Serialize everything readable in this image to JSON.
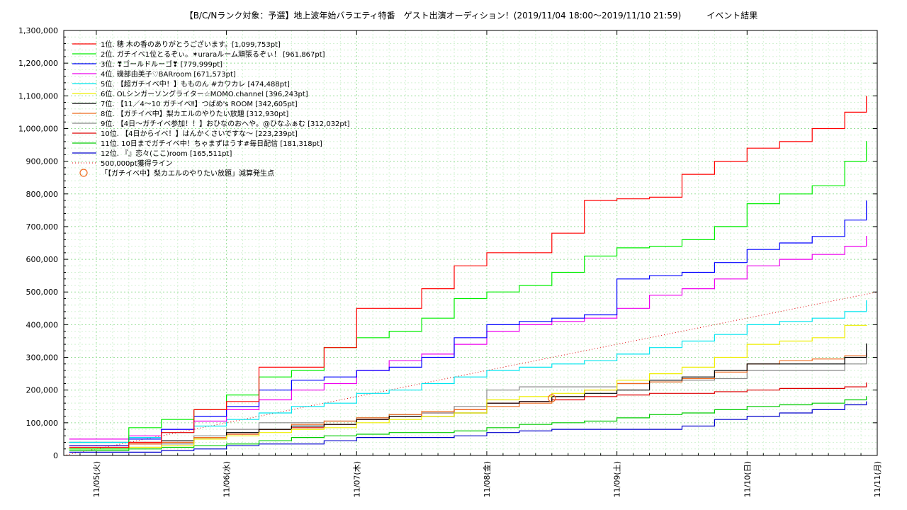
{
  "chart_data": {
    "type": "line",
    "title": "【B/C/Nランク対象：予選】地上波年始バラエティ特番　ゲスト出演オーディション！(2019/11/04 18:00～2019/11/10 21:59)　　　イベント結果",
    "x_start": "2019-11-04 18:00",
    "x_end": "2019-11-11 00:00",
    "x_ticks": [
      {
        "date": "2019-11-05 00:00",
        "label": "11/05(火)"
      },
      {
        "date": "2019-11-06 00:00",
        "label": "11/06(水)"
      },
      {
        "date": "2019-11-07 00:00",
        "label": "11/07(木)"
      },
      {
        "date": "2019-11-08 00:00",
        "label": "11/08(金)"
      },
      {
        "date": "2019-11-09 00:00",
        "label": "11/09(土)"
      },
      {
        "date": "2019-11-10 00:00",
        "label": "11/10(日)"
      },
      {
        "date": "2019-11-11 00:00",
        "label": "11/11(月)"
      }
    ],
    "ylim": [
      0,
      1300000
    ],
    "y_ticks": [
      {
        "value": 0,
        "label": "0"
      },
      {
        "value": 100000,
        "label": "100,000"
      },
      {
        "value": 200000,
        "label": "200,000"
      },
      {
        "value": 300000,
        "label": "300,000"
      },
      {
        "value": 400000,
        "label": "400,000"
      },
      {
        "value": 500000,
        "label": "500,000"
      },
      {
        "value": 600000,
        "label": "600,000"
      },
      {
        "value": 700000,
        "label": "700,000"
      },
      {
        "value": 800000,
        "label": "800,000"
      },
      {
        "value": 900000,
        "label": "900,000"
      },
      {
        "value": 1000000,
        "label": "1,000,000"
      },
      {
        "value": 1100000,
        "label": "1,100,000"
      },
      {
        "value": 1200000,
        "label": "1,200,000"
      },
      {
        "value": 1300000,
        "label": "1,300,000"
      }
    ],
    "grid": true,
    "legend_position": "top-left",
    "x": [
      "2019-11-04 19:00",
      "2019-11-05 06:00",
      "2019-11-05 12:00",
      "2019-11-05 18:00",
      "2019-11-06 00:00",
      "2019-11-06 06:00",
      "2019-11-06 12:00",
      "2019-11-06 18:00",
      "2019-11-07 00:00",
      "2019-11-07 06:00",
      "2019-11-07 12:00",
      "2019-11-07 18:00",
      "2019-11-08 00:00",
      "2019-11-08 06:00",
      "2019-11-08 12:00",
      "2019-11-08 18:00",
      "2019-11-09 00:00",
      "2019-11-09 06:00",
      "2019-11-09 12:00",
      "2019-11-09 18:00",
      "2019-11-10 00:00",
      "2019-11-10 06:00",
      "2019-11-10 12:00",
      "2019-11-10 18:00",
      "2019-11-10 22:00"
    ],
    "series": [
      {
        "name": "1位. 穂 木の香のありがとうございます。[1,099,753pt]",
        "color": "#ff0000",
        "values": [
          25000,
          40000,
          70000,
          140000,
          165000,
          270000,
          270000,
          330000,
          450000,
          450000,
          510000,
          580000,
          620000,
          620000,
          680000,
          780000,
          785000,
          790000,
          860000,
          900000,
          940000,
          960000,
          1000000,
          1050000,
          1099753
        ]
      },
      {
        "name": "2位. ガチイベ1位とるぞぃ。✶uraraルーム頑張るぞぃ！ [961,867pt]",
        "color": "#00ee00",
        "values": [
          20000,
          85000,
          110000,
          140000,
          185000,
          240000,
          260000,
          330000,
          360000,
          380000,
          420000,
          480000,
          500000,
          520000,
          560000,
          610000,
          635000,
          640000,
          660000,
          700000,
          770000,
          800000,
          825000,
          900000,
          961867
        ]
      },
      {
        "name": "3位. ❣ゴールドルーゴ❣ [779,999pt]",
        "color": "#0000ff",
        "values": [
          30000,
          50000,
          80000,
          120000,
          150000,
          200000,
          230000,
          240000,
          260000,
          270000,
          300000,
          360000,
          400000,
          410000,
          420000,
          430000,
          540000,
          550000,
          560000,
          590000,
          630000,
          650000,
          670000,
          720000,
          779999
        ]
      },
      {
        "name": "4位. 磯部由美子♡BARroom [671,573pt]",
        "color": "#ee00ee",
        "values": [
          50000,
          60000,
          80000,
          105000,
          140000,
          170000,
          200000,
          220000,
          260000,
          290000,
          310000,
          340000,
          380000,
          400000,
          410000,
          420000,
          450000,
          490000,
          510000,
          540000,
          580000,
          600000,
          615000,
          640000,
          671573
        ]
      },
      {
        "name": "5位. 【超ガチイベ中！】もものん #カワカレ [474,488pt]",
        "color": "#00e5ee",
        "values": [
          40000,
          55000,
          70000,
          90000,
          110000,
          130000,
          150000,
          160000,
          190000,
          200000,
          220000,
          240000,
          260000,
          270000,
          280000,
          290000,
          310000,
          330000,
          350000,
          370000,
          400000,
          410000,
          420000,
          440000,
          474488
        ]
      },
      {
        "name": "6位. OLシンガーソングライター☆MOMO.channel [396,243pt]",
        "color": "#eeee00",
        "values": [
          20000,
          25000,
          30000,
          50000,
          60000,
          70000,
          80000,
          85000,
          100000,
          110000,
          120000,
          130000,
          170000,
          180000,
          190000,
          200000,
          230000,
          250000,
          270000,
          300000,
          340000,
          350000,
          360000,
          398000,
          396243
        ]
      },
      {
        "name": "7位. 【11／4～10 ガチイベ‼】つばめ's ROOM [342,605pt]",
        "color": "#000000",
        "values": [
          40000,
          40000,
          45000,
          50000,
          70000,
          80000,
          90000,
          95000,
          110000,
          120000,
          120000,
          130000,
          160000,
          165000,
          180000,
          190000,
          200000,
          230000,
          240000,
          260000,
          280000,
          280000,
          280000,
          300000,
          342605
        ]
      },
      {
        "name": "8位. 【ガチイベ中】梨カエルのやりたい放題 [312,930pt]",
        "color": "#ee6a1e",
        "values": [
          30000,
          35000,
          40000,
          55000,
          65000,
          80000,
          95000,
          105000,
          115000,
          125000,
          135000,
          140000,
          150000,
          160000,
          180000,
          200000,
          220000,
          225000,
          235000,
          255000,
          280000,
          290000,
          295000,
          305000,
          312930
        ]
      },
      {
        "name": "9位. 【4日～ガチイベ参加！！】おひなのおへや。@ひなふぁむ [312,032pt]",
        "color": "#888888",
        "values": [
          20000,
          25000,
          35000,
          60000,
          80000,
          100000,
          100000,
          105000,
          115000,
          125000,
          130000,
          150000,
          200000,
          210000,
          210000,
          210000,
          220000,
          225000,
          230000,
          235000,
          260000,
          260000,
          260000,
          280000,
          312032
        ]
      },
      {
        "name": "10位. 【4日からイベ！】はんかくさいですな～ [223,239pt]",
        "color": "#dd0000",
        "values": [
          30000,
          35000,
          40000,
          50000,
          65000,
          80000,
          85000,
          95000,
          110000,
          120000,
          130000,
          140000,
          160000,
          165000,
          170000,
          180000,
          185000,
          190000,
          190000,
          195000,
          200000,
          205000,
          205000,
          210000,
          223239
        ]
      },
      {
        "name": "11位. 10日までガチイベ中！ちゃまずはうす#毎日配信 [181,318pt]",
        "color": "#00cc00",
        "values": [
          15000,
          20000,
          25000,
          30000,
          35000,
          45000,
          55000,
          60000,
          65000,
          70000,
          70000,
          75000,
          85000,
          95000,
          100000,
          105000,
          115000,
          125000,
          130000,
          140000,
          150000,
          155000,
          160000,
          170000,
          181318
        ]
      },
      {
        "name": "12位. 『』恋々(ここ)room [165,511pt]",
        "color": "#0000cc",
        "values": [
          10000,
          10000,
          15000,
          20000,
          30000,
          35000,
          35000,
          45000,
          55000,
          55000,
          55000,
          60000,
          70000,
          75000,
          80000,
          80000,
          80000,
          80000,
          90000,
          110000,
          120000,
          130000,
          140000,
          155000,
          165511
        ]
      }
    ],
    "reference_line": {
      "name": "500,000pt獲得ライン",
      "color": "#dd0000",
      "values": [
        0,
        500000
      ]
    },
    "marker": {
      "name": "「【ガチイベ中】梨カエルのやりたい放題」減算発生点",
      "color": "#ee6a1e",
      "x": "2019-11-08 12:00",
      "y": 175000
    }
  }
}
